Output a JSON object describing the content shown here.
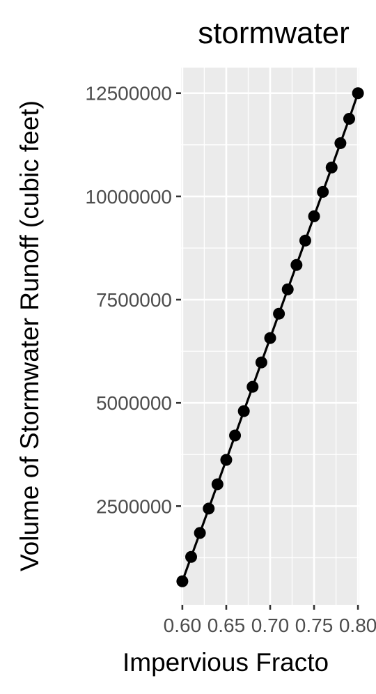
{
  "chart_data": {
    "type": "line",
    "title": "stormwater",
    "xlabel": "Impervious Fracto",
    "ylabel": "Volume of Stormwater Runoff (cubic feet)",
    "xlim": [
      0.5985,
      0.8015
    ],
    "ylim": [
      110000,
      13120000
    ],
    "x_ticks": [
      0.6,
      0.65,
      0.7,
      0.75,
      0.8
    ],
    "x_tick_labels": [
      "0.60",
      "0.65",
      "0.70",
      "0.75",
      "0.80"
    ],
    "y_ticks": [
      2500000,
      5000000,
      7500000,
      10000000,
      12500000
    ],
    "y_tick_labels": [
      "2500000",
      "5000000",
      "7500000",
      "10000000",
      "12500000"
    ],
    "grid": true,
    "legend": "none",
    "colors": {
      "panel_background": "#ebebeb",
      "grid": "#ffffff",
      "line": "#000000",
      "points": "#000000",
      "tick_text": "#4d4d4d",
      "tick_marks": "#333333"
    },
    "series": [
      {
        "x": [
          0.6,
          0.61,
          0.62,
          0.63,
          0.64,
          0.65,
          0.66,
          0.67,
          0.68,
          0.69,
          0.7,
          0.71,
          0.72,
          0.73,
          0.74,
          0.75,
          0.76,
          0.77,
          0.78,
          0.79,
          0.8
        ],
        "values": [
          680000,
          1270000,
          1850000,
          2440000,
          3030000,
          3620000,
          4210000,
          4800000,
          5390000,
          5980000,
          6570000,
          7160000,
          7750000,
          8340000,
          8930000,
          9520000,
          10110000,
          10700000,
          11290000,
          11880000,
          12500000
        ]
      }
    ]
  }
}
